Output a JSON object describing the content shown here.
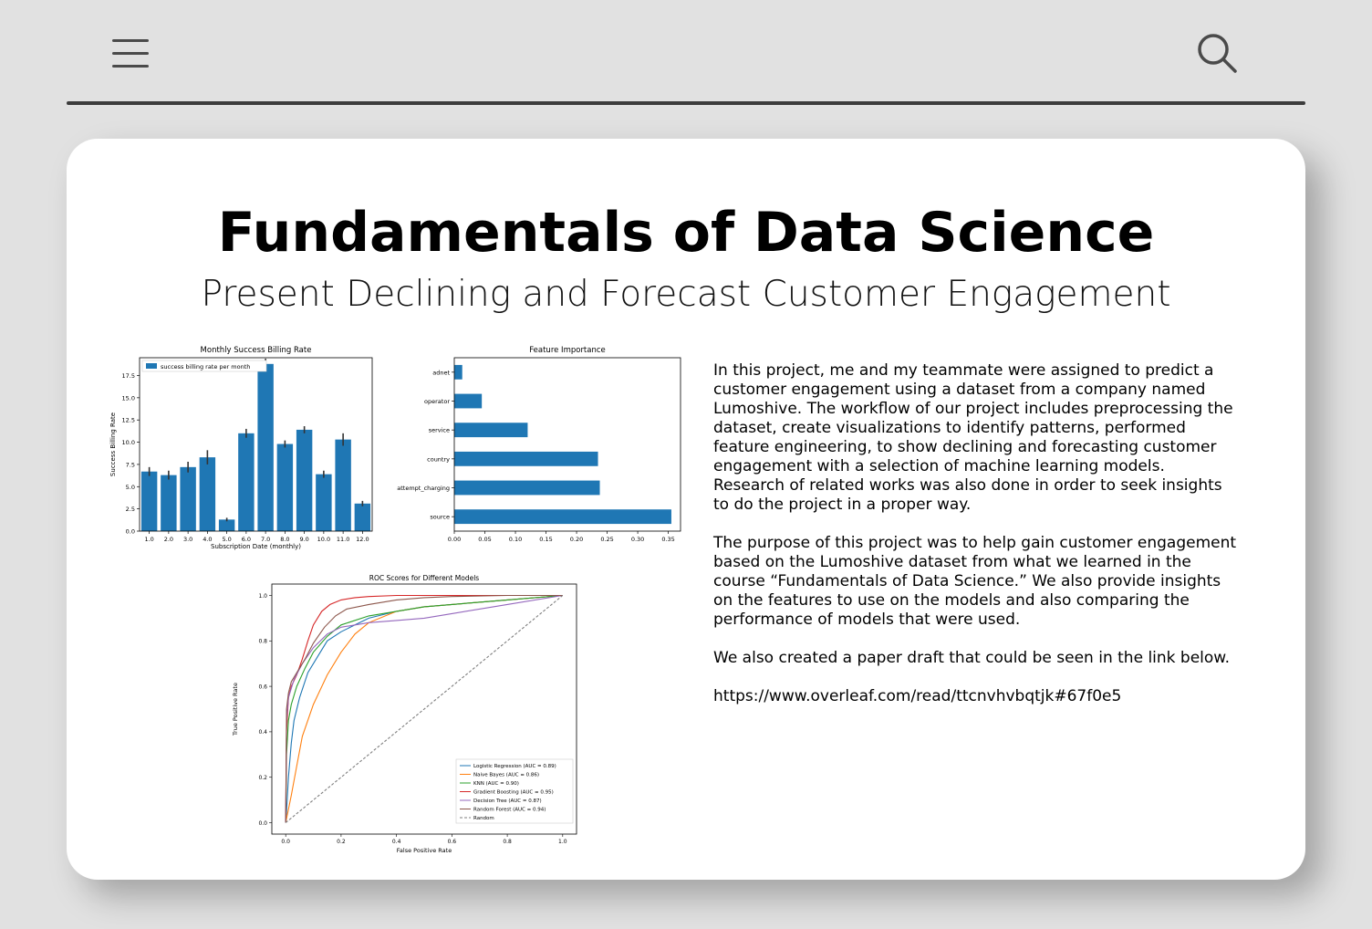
{
  "icons": {
    "menu": "hamburger-menu-icon",
    "search": "search-icon"
  },
  "colors": {
    "page_bg": "#e1e1e1",
    "card_bg": "#ffffff",
    "bar": "#1f77b4"
  },
  "page": {
    "title": "Fundamentals of Data Science",
    "subtitle": "Present Declining and Forecast Customer Engagement"
  },
  "description": {
    "paragraph_1": "In this project, me and my teammate were assigned to predict a customer engagement using a dataset from a company named Lumoshive. The workflow of our project includes preprocessing the dataset, create visualizations to identify patterns, performed feature engineering, to show declining and forecasting customer engagement with a selection of machine learning models. Research of related works was also done in order to seek insights to do the project in a proper way.",
    "paragraph_2": "The purpose of this project was to help gain customer engagement based on the Lumoshive dataset from what we learned in the course “Fundamentals of Data Science.” We also provide insights on the features to use on the models and also comparing the performance of models that were used.",
    "paragraph_3": "We also created a paper draft that could be seen in the link below.",
    "link": "https://www.overleaf.com/read/ttcnvhvbqtjk#67f0e5"
  },
  "chart_data": [
    {
      "type": "bar",
      "title": "Monthly Success Billing Rate",
      "xlabel": "Subscription Date (monthly)",
      "ylabel": "Success Billing Rate",
      "categories": [
        "1.0",
        "2.0",
        "3.0",
        "4.0",
        "5.0",
        "6.0",
        "7.0",
        "8.0",
        "9.0",
        "10.0",
        "11.0",
        "12.0"
      ],
      "values": [
        6.7,
        6.3,
        7.2,
        8.3,
        1.3,
        11.0,
        18.8,
        9.8,
        11.4,
        6.4,
        10.3,
        3.1
      ],
      "errors": [
        0.5,
        0.5,
        0.6,
        0.8,
        0.2,
        0.5,
        0.6,
        0.4,
        0.4,
        0.4,
        0.7,
        0.3
      ],
      "ylim": [
        0,
        19.5
      ],
      "yticks": [
        0.0,
        2.5,
        5.0,
        7.5,
        10.0,
        12.5,
        15.0,
        17.5
      ],
      "ytick_labels": [
        "0.0",
        "2.5",
        "5.0",
        "7.5",
        "10.0",
        "12.5",
        "15.0",
        "17.5"
      ],
      "legend": "success billing rate per month",
      "legend_position": "upper-left"
    },
    {
      "type": "bar",
      "orientation": "horizontal",
      "title": "Feature Importance",
      "categories": [
        "source",
        "attempt_charging",
        "country",
        "service",
        "operator",
        "adnet"
      ],
      "values": [
        0.355,
        0.238,
        0.235,
        0.12,
        0.045,
        0.013
      ],
      "xlim": [
        0,
        0.37
      ],
      "xticks": [
        0.0,
        0.05,
        0.1,
        0.15,
        0.2,
        0.25,
        0.3,
        0.35
      ],
      "xtick_labels": [
        "0.00",
        "0.05",
        "0.10",
        "0.15",
        "0.20",
        "0.25",
        "0.30",
        "0.35"
      ]
    },
    {
      "type": "line",
      "title": "ROC Scores for Different Models",
      "xlabel": "False Positive Rate",
      "ylabel": "True Positive Rate",
      "xlim": [
        -0.05,
        1.05
      ],
      "ylim": [
        -0.05,
        1.05
      ],
      "ticks": [
        0.0,
        0.2,
        0.4,
        0.6,
        0.8,
        1.0
      ],
      "tick_labels": [
        "0.0",
        "0.2",
        "0.4",
        "0.6",
        "0.8",
        "1.0"
      ],
      "legend_position": "lower-right",
      "series": [
        {
          "name": "Logistic Regression (AUC = 0.89)",
          "color": "#1f77b4",
          "x": [
            0,
            0.003,
            0.01,
            0.02,
            0.03,
            0.05,
            0.08,
            0.12,
            0.15,
            0.2,
            0.25,
            0.3,
            0.4,
            0.5,
            0.6,
            0.8,
            1.0
          ],
          "y": [
            0,
            0.05,
            0.2,
            0.35,
            0.45,
            0.55,
            0.66,
            0.74,
            0.8,
            0.84,
            0.87,
            0.9,
            0.93,
            0.95,
            0.96,
            0.98,
            1.0
          ]
        },
        {
          "name": "Naive Bayes (AUC = 0.86)",
          "color": "#ff7f0e",
          "x": [
            0,
            0.005,
            0.02,
            0.04,
            0.06,
            0.1,
            0.15,
            0.2,
            0.25,
            0.3,
            0.4,
            0.5,
            0.6,
            0.8,
            1.0
          ],
          "y": [
            0,
            0.03,
            0.12,
            0.25,
            0.38,
            0.52,
            0.65,
            0.75,
            0.83,
            0.88,
            0.93,
            0.95,
            0.96,
            0.98,
            1.0
          ]
        },
        {
          "name": "KNN (AUC = 0.90)",
          "color": "#2ca02c",
          "x": [
            0,
            0.003,
            0.01,
            0.02,
            0.04,
            0.07,
            0.1,
            0.15,
            0.2,
            0.3,
            0.4,
            0.5,
            0.6,
            0.8,
            1.0
          ],
          "y": [
            0,
            0.3,
            0.45,
            0.52,
            0.6,
            0.68,
            0.75,
            0.82,
            0.87,
            0.91,
            0.93,
            0.95,
            0.96,
            0.98,
            1.0
          ]
        },
        {
          "name": "Gradient Boosting (AUC = 0.95)",
          "color": "#d62728",
          "x": [
            0,
            0.003,
            0.01,
            0.02,
            0.04,
            0.06,
            0.08,
            0.1,
            0.13,
            0.16,
            0.2,
            0.25,
            0.3,
            0.4,
            0.5,
            0.7,
            1.0
          ],
          "y": [
            0,
            0.4,
            0.55,
            0.6,
            0.65,
            0.72,
            0.8,
            0.87,
            0.93,
            0.96,
            0.98,
            0.99,
            0.995,
            1.0,
            1.0,
            1.0,
            1.0
          ]
        },
        {
          "name": "Decision Tree (AUC = 0.87)",
          "color": "#9467bd",
          "x": [
            0,
            0.003,
            0.01,
            0.03,
            0.06,
            0.1,
            0.15,
            0.2,
            0.3,
            0.4,
            0.5,
            0.6,
            0.8,
            1.0
          ],
          "y": [
            0,
            0.45,
            0.55,
            0.63,
            0.7,
            0.77,
            0.83,
            0.86,
            0.88,
            0.89,
            0.9,
            0.92,
            0.96,
            1.0
          ]
        },
        {
          "name": "Random Forest (AUC = 0.94)",
          "color": "#8c564b",
          "x": [
            0,
            0.003,
            0.01,
            0.02,
            0.04,
            0.07,
            0.1,
            0.14,
            0.18,
            0.22,
            0.3,
            0.4,
            0.5,
            0.6,
            0.8,
            1.0
          ],
          "y": [
            0,
            0.5,
            0.57,
            0.62,
            0.66,
            0.72,
            0.79,
            0.86,
            0.91,
            0.94,
            0.96,
            0.98,
            0.99,
            0.995,
            1.0,
            1.0
          ]
        },
        {
          "name": "Random",
          "color": "#7f7f7f",
          "dashed": true,
          "x": [
            0,
            1
          ],
          "y": [
            0,
            1
          ]
        }
      ]
    }
  ]
}
